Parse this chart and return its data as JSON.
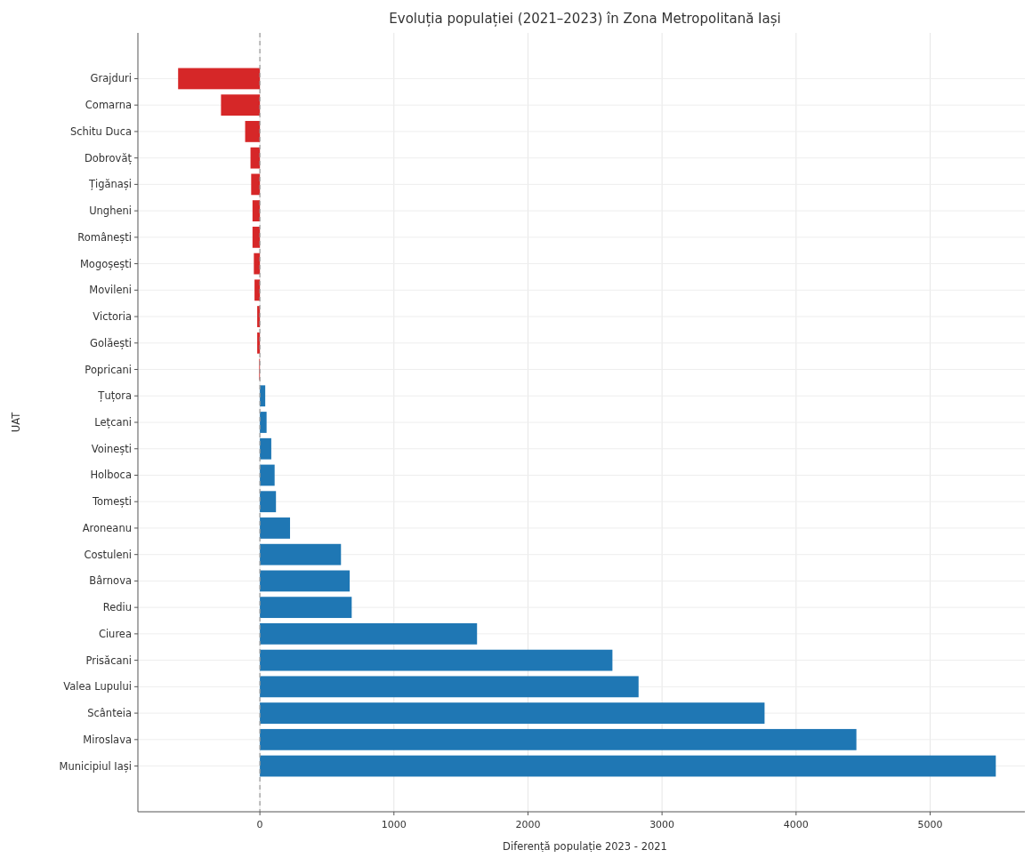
{
  "chart_data": {
    "type": "bar",
    "orientation": "horizontal",
    "title": "Evoluția populației (2021–2023) în Zona Metropolitană Iași",
    "xlabel": "Diferență populație 2023 - 2021",
    "ylabel": "UAT",
    "categories": [
      "Grajduri",
      "Comarna",
      "Schitu Duca",
      "Dobrovăț",
      "Țigănași",
      "Ungheni",
      "Românești",
      "Mogoșești",
      "Movileni",
      "Victoria",
      "Golăești",
      "Popricani",
      "Țuțora",
      "Lețcani",
      "Voinești",
      "Holboca",
      "Tomești",
      "Aroneanu",
      "Costuleni",
      "Bârnova",
      "Rediu",
      "Ciurea",
      "Prisăcani",
      "Valea Lupului",
      "Scânteia",
      "Miroslava",
      "Municipiul Iași"
    ],
    "values": [
      -610,
      -290,
      -110,
      -70,
      -65,
      -55,
      -55,
      -45,
      -40,
      -20,
      -20,
      -5,
      40,
      50,
      85,
      110,
      120,
      225,
      605,
      670,
      685,
      1620,
      2630,
      2825,
      3765,
      4450,
      5490
    ],
    "colors": [
      "#d62728",
      "#d62728",
      "#d62728",
      "#d62728",
      "#d62728",
      "#d62728",
      "#d62728",
      "#d62728",
      "#d62728",
      "#d62728",
      "#d62728",
      "#d62728",
      "#1f77b4",
      "#1f77b4",
      "#1f77b4",
      "#1f77b4",
      "#1f77b4",
      "#1f77b4",
      "#1f77b4",
      "#1f77b4",
      "#1f77b4",
      "#1f77b4",
      "#1f77b4",
      "#1f77b4",
      "#1f77b4",
      "#1f77b4",
      "#1f77b4"
    ],
    "xlim": [
      -910,
      5760
    ],
    "xticks": [
      0,
      1000,
      2000,
      3000,
      4000,
      5000
    ],
    "grid": true,
    "ref_lines": [
      {
        "axis": "x",
        "value": 0,
        "color": "#999999",
        "line_style": "dashed"
      }
    ]
  }
}
